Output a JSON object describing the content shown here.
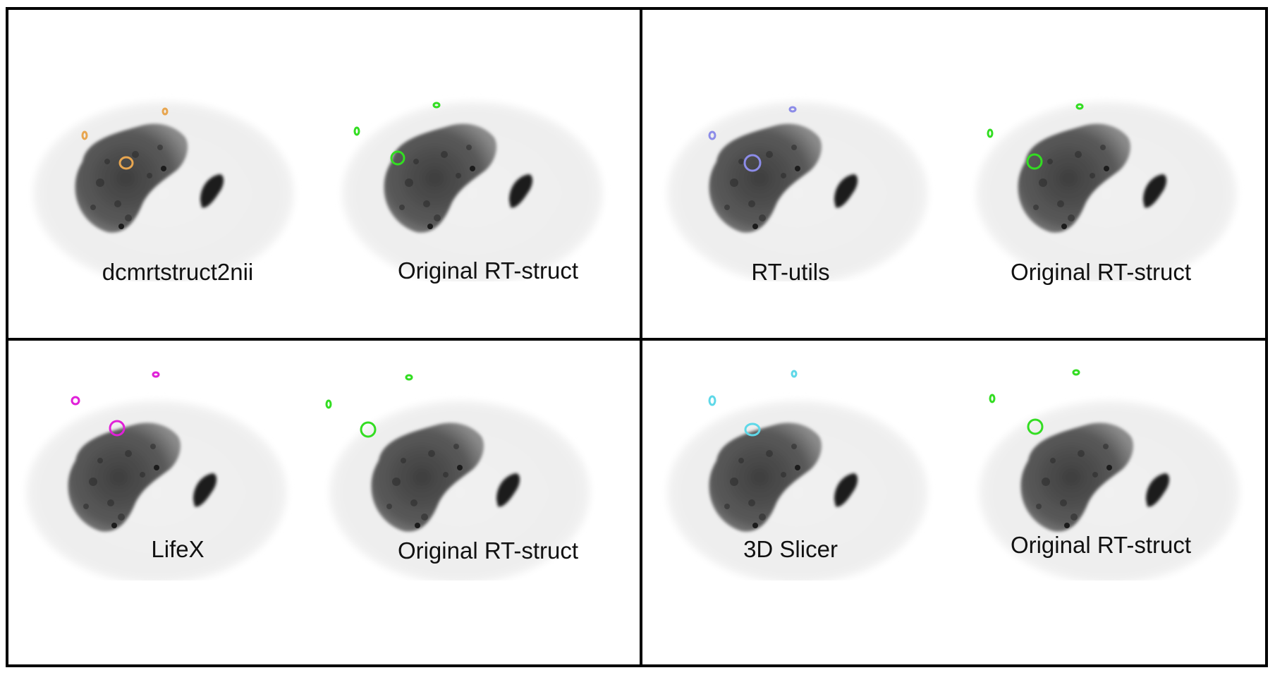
{
  "panels": [
    {
      "id": "top-left",
      "tool": {
        "label": "dcmrtstruct2nii",
        "color": "#e8a650"
      },
      "reference": {
        "label": "Original RT-struct",
        "color": "#33dd22"
      }
    },
    {
      "id": "top-right",
      "tool": {
        "label": "RT-utils",
        "color": "#8c8ce8"
      },
      "reference": {
        "label": "Original RT-struct",
        "color": "#33dd22"
      }
    },
    {
      "id": "bottom-left",
      "tool": {
        "label": "LifeX",
        "color": "#e020d8"
      },
      "reference": {
        "label": "Original RT-struct",
        "color": "#33dd22"
      }
    },
    {
      "id": "bottom-right",
      "tool": {
        "label": "3D Slicer",
        "color": "#5fd8e8"
      },
      "reference": {
        "label": "Original RT-struct",
        "color": "#33dd22"
      }
    }
  ]
}
